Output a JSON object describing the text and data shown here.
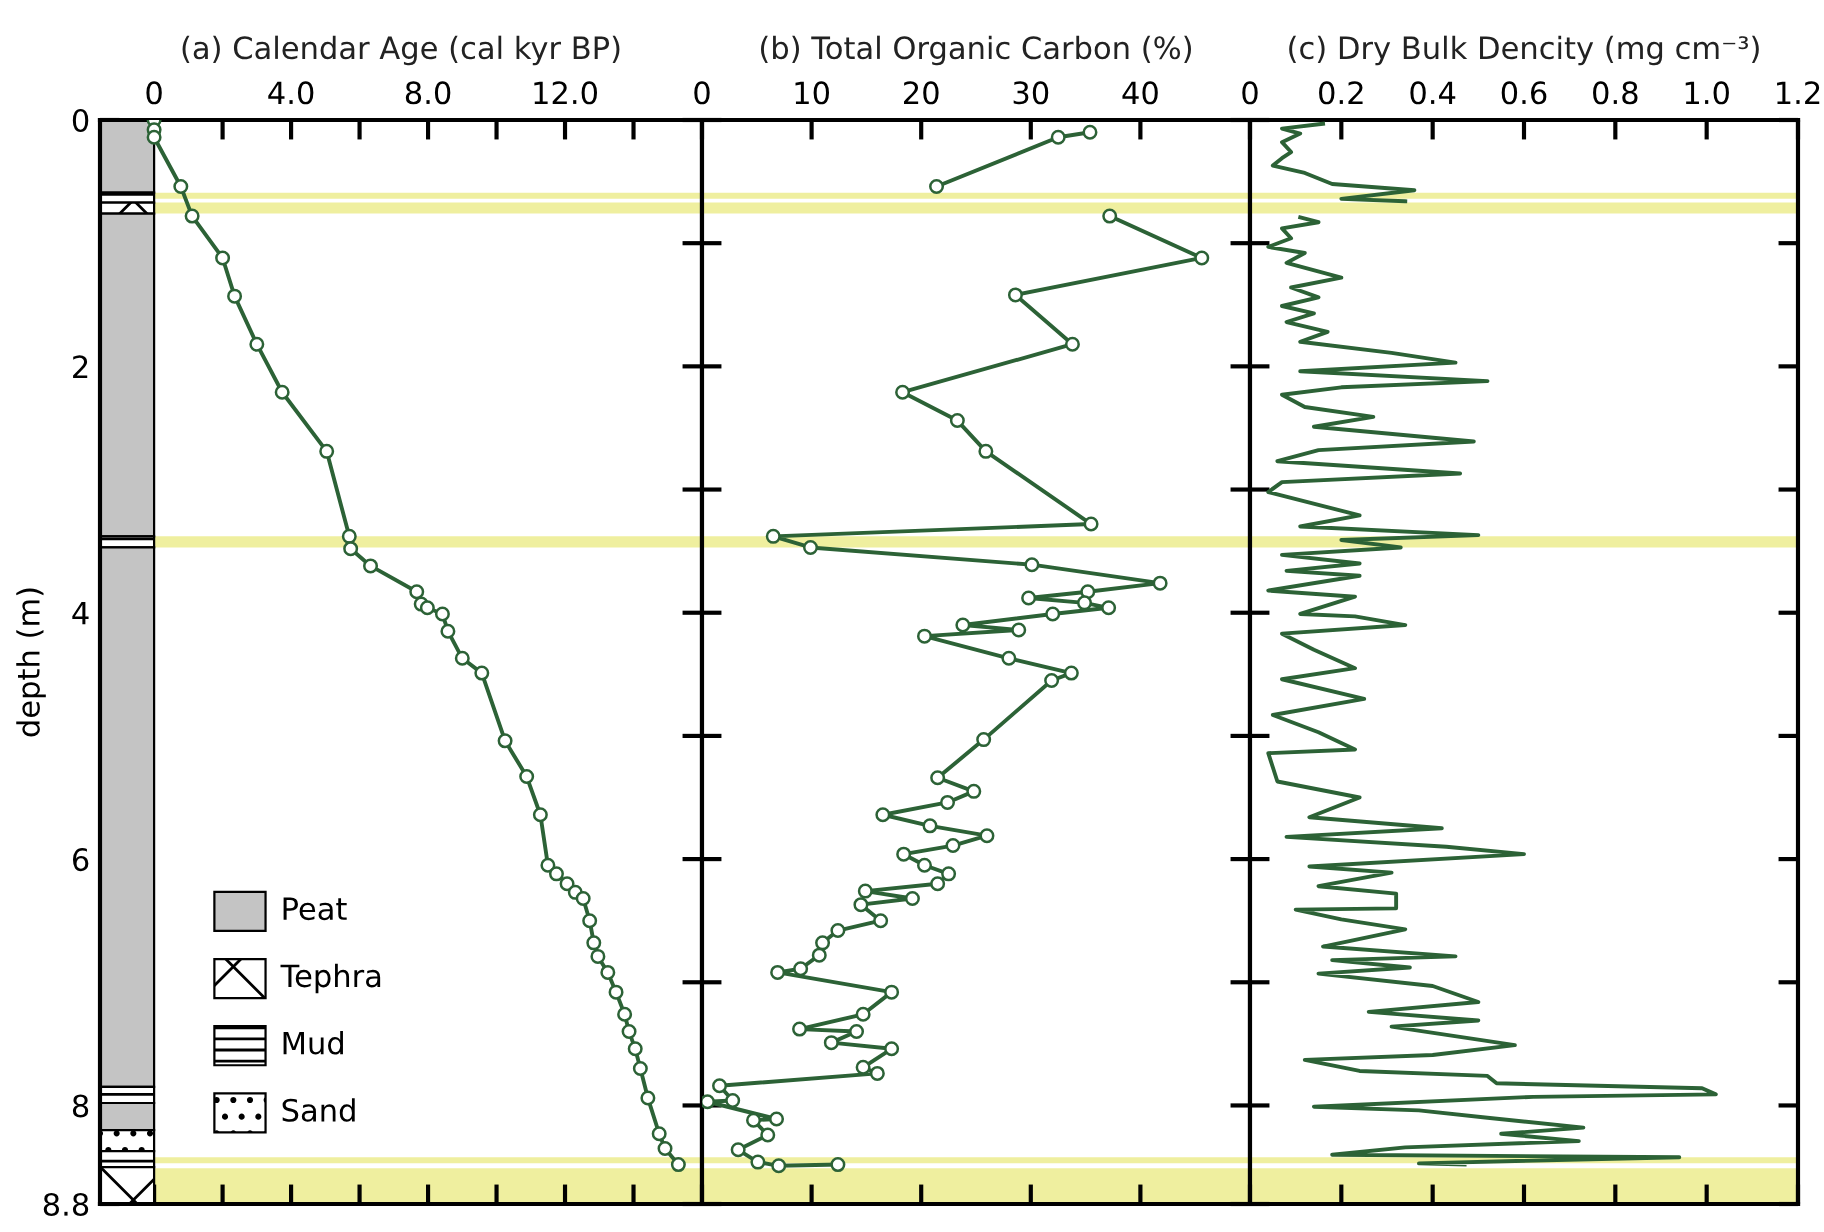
{
  "chart_data": [
    {
      "type": "line",
      "title": "(a) Calendar Age (cal kyr BP)",
      "ylabel": "depth (m)",
      "marker": "circle",
      "line_style": "solid",
      "grid": false,
      "legend": false,
      "xlim": [
        -1.58,
        16
      ],
      "xticks": [
        0,
        {
          "value": 2,
          "label": null
        },
        {
          "value": 4,
          "label": "4.0"
        },
        {
          "value": 6,
          "label": null
        },
        {
          "value": 8,
          "label": "8.0"
        },
        {
          "value": 10,
          "label": null
        },
        {
          "value": 12,
          "label": "12.0"
        },
        {
          "value": 14,
          "label": null
        }
      ],
      "ylim": [
        8.8,
        0
      ],
      "yticks": [
        0,
        {
          "value": 1,
          "label": null
        },
        2,
        {
          "value": 3,
          "label": null
        },
        4,
        {
          "value": 5,
          "label": null
        },
        6,
        {
          "value": 7,
          "label": null
        },
        8,
        8.8
      ],
      "annotations": [
        "Peat",
        "Tephra",
        "Mud",
        "Sand"
      ],
      "bands": [
        {
          "axis": "y",
          "from": 0.59,
          "to": 0.64,
          "color": "#efef9f"
        },
        {
          "axis": "y",
          "from": 0.67,
          "to": 0.76,
          "color": "#efef9f"
        },
        {
          "axis": "y",
          "from": 3.38,
          "to": 3.47,
          "color": "#efef9f"
        },
        {
          "axis": "y",
          "from": 8.42,
          "to": 8.47,
          "color": "#efef9f"
        },
        {
          "axis": "y",
          "from": 8.51,
          "to": 8.8,
          "color": "#efef9f"
        }
      ],
      "series": [
        {
          "color": "#2c6236",
          "x": [
            0,
            0,
            0,
            0.78,
            1.11,
            2.0,
            2.35,
            3.0,
            3.74,
            5.04,
            5.7,
            5.74,
            6.32,
            7.67,
            7.8,
            7.98,
            8.42,
            8.58,
            9.0,
            9.57,
            10.25,
            10.88,
            11.28,
            11.5,
            11.75,
            12.06,
            12.3,
            12.53,
            12.72,
            12.84,
            12.96,
            13.25,
            13.49,
            13.74,
            13.87,
            14.05,
            14.2,
            14.42,
            14.75,
            14.92,
            15.31
          ],
          "values": [
            0.0,
            0.08,
            0.14,
            0.54,
            0.78,
            1.12,
            1.43,
            1.82,
            2.21,
            2.69,
            3.38,
            3.48,
            3.62,
            3.83,
            3.93,
            3.96,
            4.01,
            4.15,
            4.37,
            4.49,
            5.04,
            5.33,
            5.64,
            6.05,
            6.12,
            6.2,
            6.27,
            6.32,
            6.5,
            6.68,
            6.79,
            6.92,
            7.08,
            7.26,
            7.4,
            7.54,
            7.7,
            7.94,
            8.23,
            8.35,
            8.48
          ]
        }
      ]
    },
    {
      "type": "line",
      "title": "(b) Total Organic Carbon (%)",
      "marker": "circle",
      "line_style": "solid",
      "grid": false,
      "legend": false,
      "tick_labels": "x",
      "xlim": [
        0,
        50
      ],
      "xticks": [
        0,
        10,
        20,
        30,
        40
      ],
      "ylim": [
        8.8,
        0
      ],
      "yticks": [
        0,
        {
          "value": 1,
          "label": null
        },
        2,
        {
          "value": 3,
          "label": null
        },
        4,
        {
          "value": 5,
          "label": null
        },
        6,
        {
          "value": 7,
          "label": null
        },
        8,
        8.8
      ],
      "bands": [
        {
          "axis": "y",
          "from": 0.59,
          "to": 0.64,
          "color": "#efef9f"
        },
        {
          "axis": "y",
          "from": 0.67,
          "to": 0.76,
          "color": "#efef9f"
        },
        {
          "axis": "y",
          "from": 3.38,
          "to": 3.47,
          "color": "#efef9f"
        },
        {
          "axis": "y",
          "from": 8.42,
          "to": 8.47,
          "color": "#efef9f"
        },
        {
          "axis": "y",
          "from": 8.51,
          "to": 8.8,
          "color": "#efef9f"
        }
      ],
      "series": [
        {
          "color": "#2c6236",
          "x": [
            35.4,
            32.5,
            21.4,
            null,
            37.2,
            45.6,
            28.6,
            33.8,
            18.3,
            23.3,
            25.9,
            35.5,
            6.5,
            9.9,
            30.1,
            41.8,
            35.2,
            29.8,
            34.9,
            37.1,
            32.0,
            23.8,
            28.9,
            20.3,
            28.0,
            33.7,
            31.9,
            25.7,
            21.5,
            24.8,
            22.4,
            16.5,
            20.8,
            26.0,
            22.9,
            18.4,
            20.3,
            22.5,
            21.5,
            14.9,
            19.2,
            14.5,
            16.3,
            12.4,
            11.0,
            10.7,
            9.0,
            6.9,
            17.3,
            14.7,
            8.9,
            14.1,
            11.8,
            17.3,
            14.7,
            16.0,
            1.6,
            2.8,
            0.5,
            6.8,
            4.7,
            6.0,
            3.3,
            5.1,
            7.0,
            12.4
          ],
          "values": [
            0.1,
            0.14,
            0.54,
            null,
            0.78,
            1.12,
            1.42,
            1.82,
            2.21,
            2.44,
            2.69,
            3.28,
            3.38,
            3.47,
            3.61,
            3.76,
            3.83,
            3.88,
            3.92,
            3.96,
            4.01,
            4.1,
            4.14,
            4.19,
            4.37,
            4.49,
            4.55,
            5.03,
            5.34,
            5.45,
            5.54,
            5.64,
            5.73,
            5.81,
            5.89,
            5.96,
            6.05,
            6.12,
            6.2,
            6.26,
            6.32,
            6.37,
            6.5,
            6.58,
            6.68,
            6.78,
            6.89,
            6.92,
            7.08,
            7.26,
            7.38,
            7.4,
            7.49,
            7.54,
            7.69,
            7.74,
            7.84,
            7.96,
            7.97,
            8.11,
            8.12,
            8.24,
            8.36,
            8.46,
            8.49,
            8.48
          ]
        }
      ]
    },
    {
      "type": "line",
      "title": "(c) Dry Bulk Dencity (mg cm⁻³)",
      "marker": "none",
      "line_style": "solid",
      "grid": false,
      "legend": false,
      "tick_labels": "x",
      "xlim": [
        0,
        1.2
      ],
      "xticks": [
        0,
        0.2,
        0.4,
        0.6,
        0.8,
        {
          "value": 1.0,
          "label": "1.0"
        },
        1.2
      ],
      "ylim": [
        8.8,
        0
      ],
      "yticks": [
        0,
        {
          "value": 1,
          "label": null
        },
        2,
        {
          "value": 3,
          "label": null
        },
        4,
        {
          "value": 5,
          "label": null
        },
        6,
        {
          "value": 7,
          "label": null
        },
        8,
        8.8
      ],
      "bands": [
        {
          "axis": "y",
          "from": 0.59,
          "to": 0.64,
          "color": "#efef9f"
        },
        {
          "axis": "y",
          "from": 0.67,
          "to": 0.76,
          "color": "#efef9f"
        },
        {
          "axis": "y",
          "from": 3.38,
          "to": 3.47,
          "color": "#efef9f"
        },
        {
          "axis": "y",
          "from": 8.42,
          "to": 8.47,
          "color": "#efef9f"
        },
        {
          "axis": "y",
          "from": 8.51,
          "to": 8.8,
          "color": "#efef9f"
        }
      ],
      "series": [
        {
          "color": "#2c6236",
          "x": [
            0.16,
            0.07,
            0.11,
            0.07,
            0.09,
            0.07,
            0.05,
            0.12,
            0.18,
            0.36,
            0.2,
            0.34,
            null,
            0.11,
            0.15,
            0.07,
            0.09,
            0.04,
            0.12,
            0.08,
            0.2,
            0.09,
            0.15,
            0.07,
            0.14,
            0.08,
            0.17,
            0.11,
            0.31,
            0.45,
            0.11,
            0.52,
            0.2,
            0.07,
            0.12,
            0.27,
            0.14,
            0.49,
            0.15,
            0.06,
            0.46,
            0.07,
            0.04,
            0.24,
            0.11,
            0.5,
            0.2,
            0.33,
            0.07,
            0.24,
            0.08,
            0.24,
            0.04,
            0.23,
            0.11,
            0.23,
            0.34,
            0.07,
            0.14,
            0.23,
            0.07,
            0.25,
            0.05,
            0.15,
            0.23,
            0.04,
            0.06,
            0.24,
            0.13,
            0.42,
            0.08,
            0.43,
            0.6,
            0.13,
            0.31,
            0.15,
            0.32,
            0.32,
            0.1,
            0.2,
            0.34,
            0.16,
            0.45,
            0.18,
            0.35,
            0.15,
            0.4,
            0.5,
            0.26,
            0.5,
            0.31,
            0.58,
            0.4,
            0.12,
            0.24,
            0.52,
            0.54,
            0.99,
            1.02,
            0.62,
            0.14,
            0.37,
            0.52,
            0.73,
            0.55,
            0.72,
            0.34,
            0.18,
            0.94,
            0.37,
            0.47
          ],
          "values": [
            0.03,
            0.07,
            0.11,
            0.18,
            0.26,
            0.31,
            0.37,
            0.43,
            0.52,
            0.57,
            0.64,
            0.66,
            null,
            0.79,
            0.83,
            0.88,
            0.96,
            1.03,
            1.08,
            1.16,
            1.28,
            1.36,
            1.44,
            1.51,
            1.57,
            1.64,
            1.72,
            1.8,
            1.89,
            1.97,
            2.04,
            2.12,
            2.17,
            2.23,
            2.33,
            2.41,
            2.49,
            2.61,
            2.68,
            2.77,
            2.87,
            2.94,
            3.02,
            3.21,
            3.3,
            3.37,
            3.41,
            3.47,
            3.53,
            3.6,
            3.66,
            3.7,
            3.82,
            3.87,
            4.01,
            4.03,
            4.1,
            4.17,
            4.3,
            4.45,
            4.54,
            4.7,
            4.83,
            4.97,
            5.11,
            5.14,
            5.37,
            5.5,
            5.66,
            5.75,
            5.82,
            5.9,
            5.96,
            6.06,
            6.11,
            6.22,
            6.28,
            6.4,
            6.41,
            6.49,
            6.57,
            6.71,
            6.79,
            6.82,
            6.88,
            6.93,
            7.03,
            7.16,
            7.24,
            7.31,
            7.36,
            7.51,
            7.59,
            7.63,
            7.72,
            7.76,
            7.82,
            7.86,
            7.91,
            7.93,
            8.01,
            8.04,
            8.1,
            8.18,
            8.23,
            8.29,
            8.34,
            8.4,
            8.42,
            8.47,
            8.48
          ]
        }
      ]
    }
  ]
}
